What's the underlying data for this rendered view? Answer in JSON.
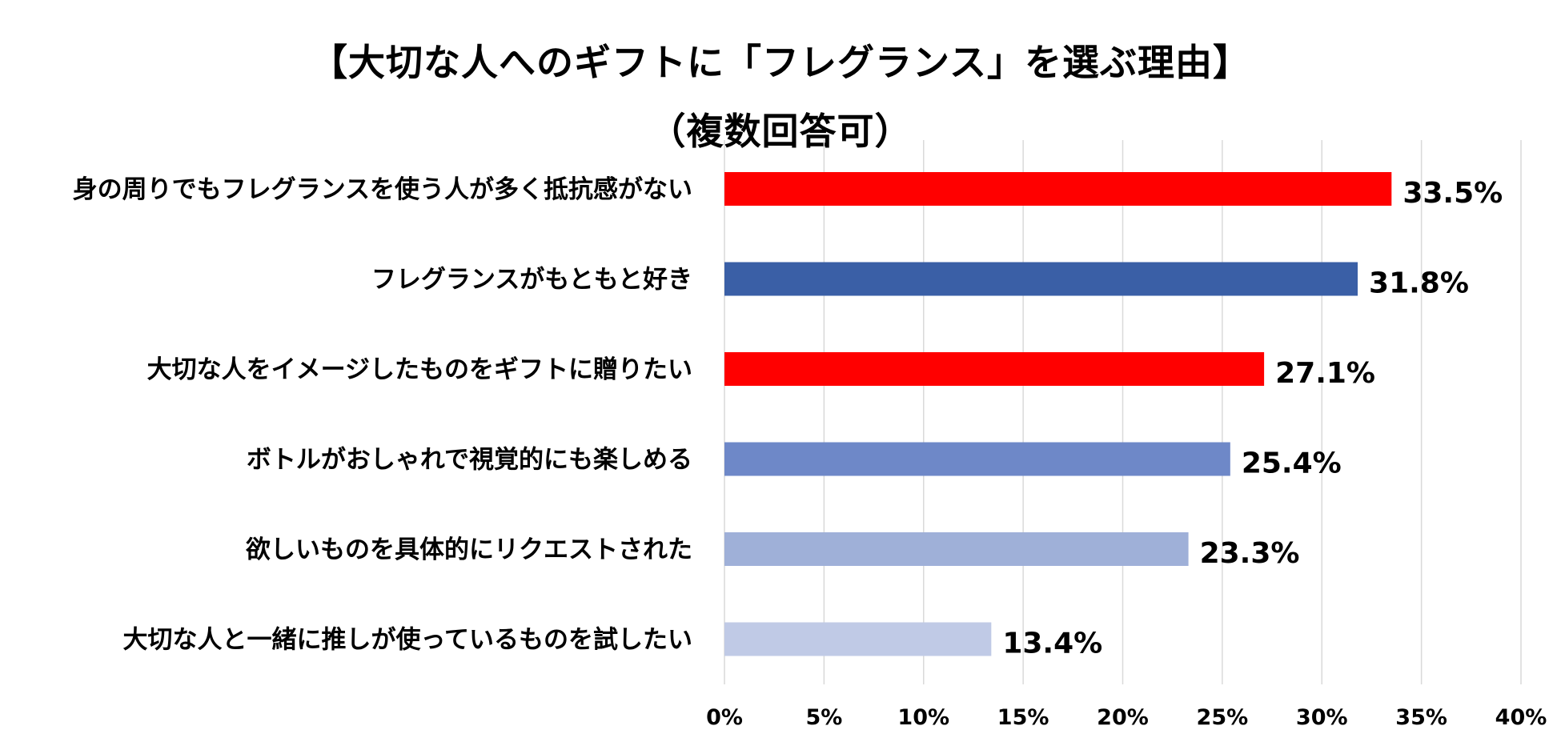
{
  "title": "【大切な人へのギフトに「フレグランス」を選ぶ理由】",
  "subtitle": "（複数回答可）",
  "chart_data": {
    "type": "bar",
    "orientation": "horizontal",
    "title": "【大切な人へのギフトに「フレグランス」を選ぶ理由】",
    "subtitle": "（複数回答可）",
    "categories": [
      "身の周りでもフレグランスを使う人が多く抵抗感がない",
      "フレグランスがもともと好き",
      "大切な人をイメージしたものをギフトに贈りたい",
      "ボトルがおしゃれで視覚的にも楽しめる",
      "欲しいものを具体的にリクエストされた",
      "大切な人と一緒に推しが使っているものを試したい"
    ],
    "values": [
      33.5,
      31.8,
      27.1,
      25.4,
      23.3,
      13.4
    ],
    "value_labels": [
      "33.5%",
      "31.8%",
      "27.1%",
      "25.4%",
      "23.3%",
      "13.4%"
    ],
    "bar_colors": [
      "#ff0000",
      "#3a5fa6",
      "#ff0000",
      "#6e88c8",
      "#9fb0d8",
      "#c0cae6"
    ],
    "xlim": [
      0,
      40
    ],
    "x_ticks": [
      0,
      5,
      10,
      15,
      20,
      25,
      30,
      35,
      40
    ],
    "x_tick_labels": [
      "0%",
      "5%",
      "10%",
      "15%",
      "20%",
      "25%",
      "30%",
      "35%",
      "40%"
    ],
    "xlabel": "",
    "ylabel": "",
    "grid": "vertical",
    "legend": "none"
  }
}
